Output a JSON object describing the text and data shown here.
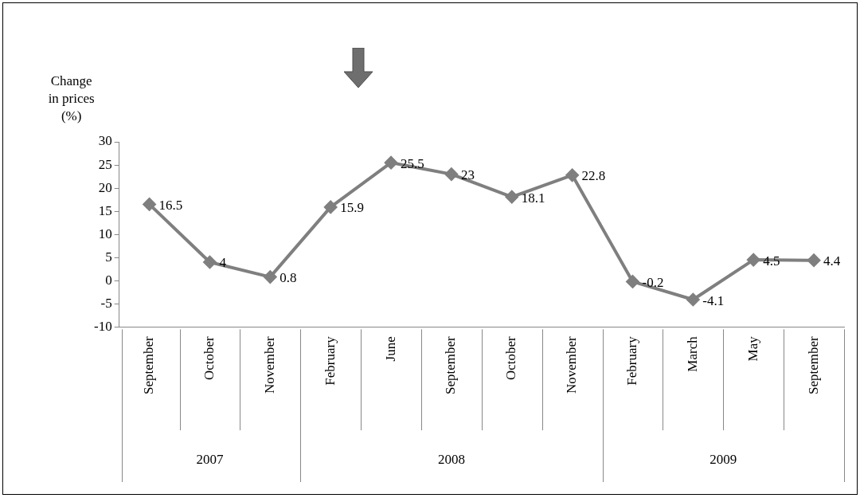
{
  "chart_data": {
    "type": "line",
    "ylabel": "Change in prices (%)",
    "categories": [
      "September",
      "October",
      "November",
      "February",
      "June",
      "September",
      "October",
      "November",
      "February",
      "March",
      "May",
      "September"
    ],
    "series": [
      {
        "color": "#7f7f7f",
        "values": [
          16.5,
          4,
          0.8,
          15.9,
          25.5,
          23,
          18.1,
          22.8,
          -0.2,
          -4.1,
          4.5,
          4.4
        ]
      }
    ],
    "ylim": [
      -10,
      30
    ],
    "yticks": [
      -10,
      -5,
      0,
      5,
      10,
      15,
      20,
      25,
      30
    ],
    "annotations": [
      "2007",
      "2008",
      "2009"
    ],
    "data_labels": true,
    "grid": false,
    "legend": false,
    "marker": "diamond",
    "line_style": "solid"
  }
}
